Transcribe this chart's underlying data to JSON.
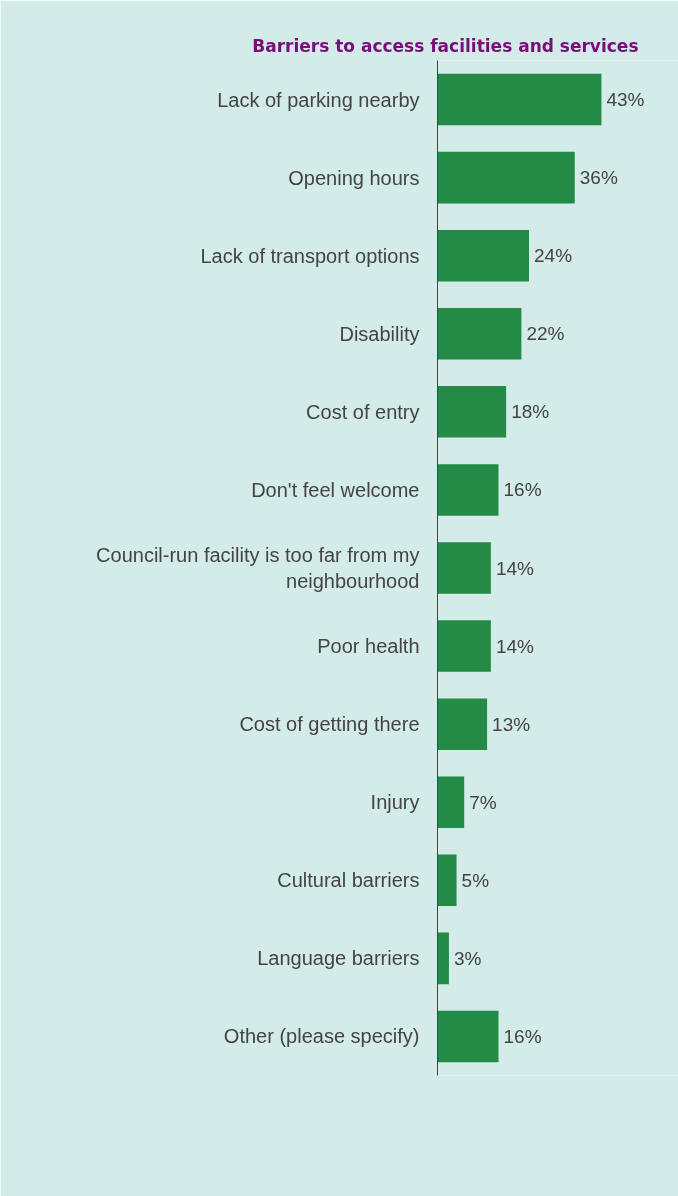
{
  "chart_data": {
    "type": "bar",
    "orientation": "horizontal",
    "title": "Barriers to access facilities and services",
    "categories": [
      "Lack of parking nearby",
      "Opening hours",
      "Lack of transport options",
      "Disability",
      "Cost of entry",
      "Don't feel welcome",
      "Council-run facility is too far from my neighbourhood",
      "Poor health",
      "Cost of getting there",
      "Injury",
      "Cultural barriers",
      "Language barriers",
      "Other (please specify)"
    ],
    "values": [
      43,
      36,
      24,
      22,
      18,
      16,
      14,
      14,
      13,
      7,
      5,
      3,
      16
    ],
    "value_labels": [
      "43%",
      "36%",
      "24%",
      "22%",
      "18%",
      "16%",
      "14%",
      "14%",
      "13%",
      "7%",
      "5%",
      "3%",
      "16%"
    ],
    "color": "#238b45",
    "grid": false
  }
}
